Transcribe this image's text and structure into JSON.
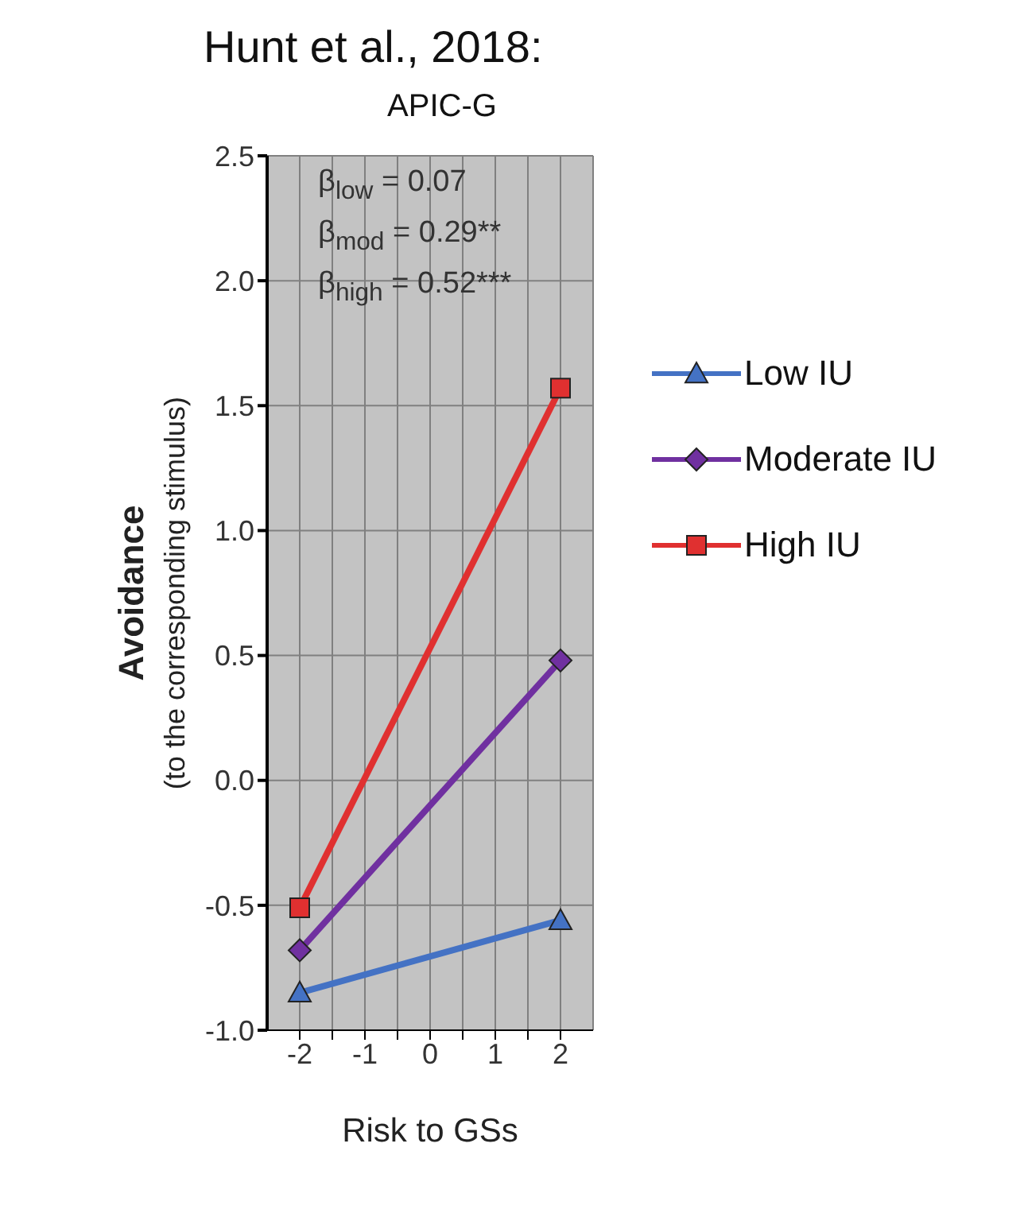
{
  "chart_data": {
    "type": "line",
    "title": "Hunt et al., 2018:",
    "subtitle": "APIC-G",
    "xlabel": "Risk to GSs",
    "ylabel": "Avoidance\n(to the corresponding stimulus)",
    "x": [
      -2,
      2
    ],
    "series": [
      {
        "name": "Low IU",
        "color": "#4472c4",
        "marker": "triangle",
        "values": [
          -0.85,
          -0.56
        ]
      },
      {
        "name": "Moderate IU",
        "color": "#7030a0",
        "marker": "diamond",
        "values": [
          -0.68,
          0.48
        ]
      },
      {
        "name": "High IU",
        "color": "#e03030",
        "marker": "square",
        "values": [
          -0.51,
          1.57
        ]
      }
    ],
    "xlim": [
      -2.5,
      2.5
    ],
    "xticks": [
      -2,
      {
        "value": -1.5,
        "label": null
      },
      -1,
      {
        "value": -0.5,
        "label": null
      },
      0,
      {
        "value": 0.5,
        "label": null
      },
      1,
      {
        "value": 1.5,
        "label": null
      },
      2
    ],
    "ylim": [
      -1.0,
      2.5
    ],
    "yticks": [
      {
        "value": -1.0,
        "label": "-1.0"
      },
      -0.5,
      {
        "value": 0.0,
        "label": "0.0"
      },
      0.5,
      {
        "value": 1.0,
        "label": "1.0"
      },
      1.5,
      {
        "value": 2.0,
        "label": "2.0"
      },
      2.5
    ],
    "annotations": [
      "β$_{low}$ = 0.07",
      "β$_{mod}$ = 0.29**",
      "β$_{high}$ = 0.52***"
    ],
    "grid": true,
    "legend": "right",
    "line_style": "solid"
  }
}
